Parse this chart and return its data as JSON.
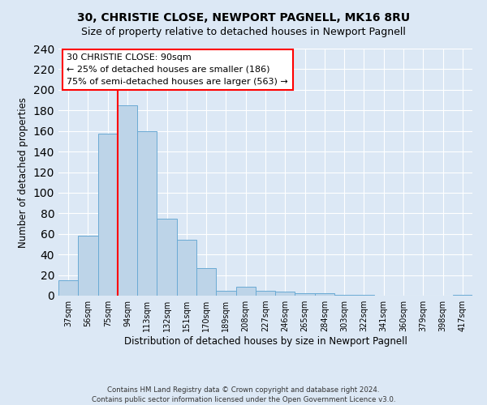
{
  "title": "30, CHRISTIE CLOSE, NEWPORT PAGNELL, MK16 8RU",
  "subtitle": "Size of property relative to detached houses in Newport Pagnell",
  "xlabel": "Distribution of detached houses by size in Newport Pagnell",
  "ylabel": "Number of detached properties",
  "bar_labels": [
    "37sqm",
    "56sqm",
    "75sqm",
    "94sqm",
    "113sqm",
    "132sqm",
    "151sqm",
    "170sqm",
    "189sqm",
    "208sqm",
    "227sqm",
    "246sqm",
    "265sqm",
    "284sqm",
    "303sqm",
    "322sqm",
    "341sqm",
    "360sqm",
    "379sqm",
    "398sqm",
    "417sqm"
  ],
  "bar_values": [
    15,
    58,
    157,
    185,
    160,
    75,
    54,
    27,
    5,
    9,
    5,
    4,
    2,
    2,
    1,
    1,
    0,
    0,
    0,
    0,
    1
  ],
  "bar_color": "#bdd4e8",
  "bar_edgecolor": "#6aaad4",
  "bar_width": 1.0,
  "vline_x": 3.0,
  "vline_color": "red",
  "ylim": [
    0,
    240
  ],
  "yticks": [
    0,
    20,
    40,
    60,
    80,
    100,
    120,
    140,
    160,
    180,
    200,
    220,
    240
  ],
  "annotation_title": "30 CHRISTIE CLOSE: 90sqm",
  "annotation_line1": "← 25% of detached houses are smaller (186)",
  "annotation_line2": "75% of semi-detached houses are larger (563) →",
  "footer_line1": "Contains HM Land Registry data © Crown copyright and database right 2024.",
  "footer_line2": "Contains public sector information licensed under the Open Government Licence v3.0.",
  "background_color": "#dce8f5",
  "plot_bg_color": "#dce8f5"
}
